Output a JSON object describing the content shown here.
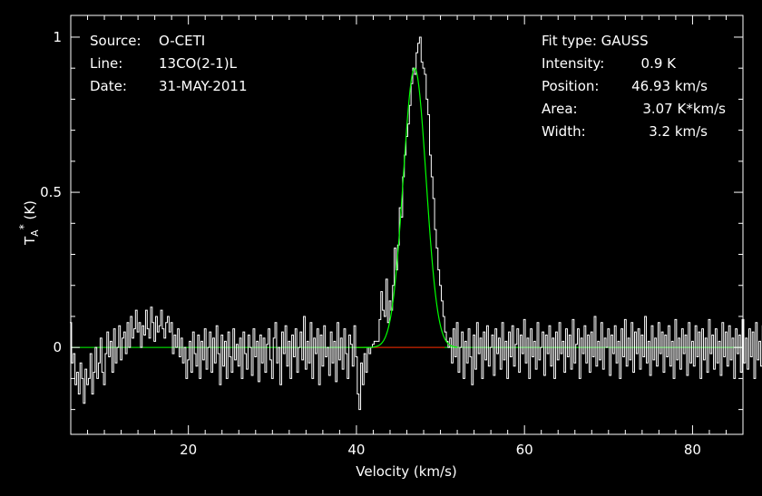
{
  "info_left": {
    "source_label": "Source:",
    "source_value": "O-CETI",
    "line_label": "Line:",
    "line_value": "13CO(2-1)L",
    "date_label": "Date:",
    "date_value": "31-MAY-2011"
  },
  "info_right": {
    "fit_type": "Fit type: GAUSS",
    "intensity_label": "Intensity:",
    "intensity_value": "0.9 K",
    "position_label": "Position:",
    "position_value": "46.93 km/s",
    "area_label": "Area:",
    "area_value": "3.07 K*km/s",
    "width_label": "Width:",
    "width_value": "3.2 km/s"
  },
  "chart_data": {
    "type": "line",
    "xlabel": "Velocity (km/s)",
    "ylabel": "T_A* (K)",
    "xlim": [
      6,
      86
    ],
    "ylim": [
      -0.28,
      1.07
    ],
    "xticks": [
      20,
      40,
      60,
      80
    ],
    "yticks": [
      0,
      0.5,
      1
    ],
    "ytick_labels": [
      "0",
      "0.5",
      "1"
    ],
    "colors": {
      "spectrum": "#ffffff",
      "fit": "#00ff00",
      "baseline": "#ff0000",
      "zero": "#00ff00"
    },
    "spectrum": {
      "x_start": 6.0,
      "x_step": 0.2,
      "values": [
        0.08,
        -0.05,
        -0.02,
        -0.12,
        -0.08,
        -0.15,
        -0.05,
        -0.1,
        -0.18,
        -0.07,
        -0.12,
        -0.1,
        -0.02,
        -0.15,
        -0.08,
        0.0,
        -0.1,
        -0.05,
        0.03,
        -0.08,
        -0.12,
        -0.02,
        0.05,
        -0.03,
        0.02,
        -0.08,
        0.06,
        -0.05,
        0.0,
        0.07,
        -0.04,
        0.03,
        0.05,
        -0.02,
        0.08,
        0.0,
        0.1,
        0.03,
        0.06,
        0.12,
        0.05,
        0.08,
        0.0,
        0.07,
        0.04,
        0.12,
        0.06,
        0.03,
        0.13,
        0.08,
        0.02,
        0.1,
        0.05,
        0.07,
        0.12,
        0.06,
        0.03,
        0.08,
        0.1,
        0.05,
        0.08,
        -0.02,
        0.04,
        0.0,
        0.06,
        -0.03,
        0.03,
        -0.05,
        0.0,
        -0.1,
        -0.04,
        0.02,
        -0.08,
        0.05,
        -0.02,
        -0.06,
        0.04,
        -0.1,
        0.02,
        -0.04,
        0.06,
        -0.07,
        0.0,
        0.05,
        -0.08,
        0.03,
        -0.05,
        0.07,
        -0.02,
        -0.12,
        0.04,
        -0.06,
        0.02,
        -0.1,
        0.05,
        -0.03,
        -0.08,
        0.06,
        -0.04,
        0.01,
        -0.06,
        0.03,
        -0.1,
        0.05,
        -0.02,
        -0.07,
        0.04,
        0.0,
        -0.09,
        0.06,
        -0.03,
        0.02,
        -0.11,
        0.04,
        -0.05,
        0.03,
        -0.08,
        0.01,
        0.06,
        -0.04,
        -0.1,
        0.03,
        0.08,
        -0.05,
        0.0,
        -0.12,
        0.05,
        -0.02,
        0.07,
        -0.06,
        0.02,
        -0.1,
        0.04,
        -0.03,
        0.06,
        -0.08,
        0.0,
        0.05,
        -0.04,
        0.1,
        -0.07,
        0.02,
        -0.05,
        0.08,
        -0.1,
        0.03,
        -0.02,
        0.06,
        -0.12,
        0.04,
        -0.06,
        0.07,
        -0.03,
        0.0,
        -0.09,
        0.05,
        -0.05,
        0.02,
        -0.11,
        0.08,
        -0.04,
        0.03,
        -0.07,
        0.06,
        -0.02,
        -0.1,
        0.04,
        0.01,
        -0.06,
        0.07,
        -0.03,
        -0.15,
        -0.2,
        -0.05,
        -0.12,
        -0.02,
        -0.08,
        0.0,
        -0.02,
        0.0,
        0.01,
        0.02,
        0.02,
        0.02,
        0.09,
        0.18,
        0.12,
        0.1,
        0.22,
        0.08,
        0.15,
        0.12,
        0.2,
        0.32,
        0.25,
        0.33,
        0.45,
        0.42,
        0.55,
        0.62,
        0.68,
        0.72,
        0.78,
        0.85,
        0.9,
        0.88,
        0.95,
        0.98,
        1.0,
        0.92,
        0.9,
        0.88,
        0.8,
        0.75,
        0.62,
        0.55,
        0.48,
        0.38,
        0.32,
        0.25,
        0.2,
        0.15,
        0.1,
        0.05,
        0.02,
        0.0,
        0.03,
        -0.05,
        0.06,
        -0.03,
        0.08,
        -0.08,
        0.0,
        0.05,
        -0.1,
        0.02,
        -0.05,
        0.06,
        -0.03,
        -0.12,
        0.04,
        -0.07,
        0.08,
        -0.02,
        0.03,
        -0.1,
        0.05,
        -0.04,
        0.07,
        -0.06,
        0.0,
        0.04,
        -0.09,
        0.06,
        -0.02,
        0.03,
        -0.07,
        0.08,
        -0.04,
        0.02,
        -0.1,
        0.05,
        -0.03,
        0.07,
        -0.06,
        0.01,
        0.06,
        -0.08,
        0.04,
        -0.02,
        0.09,
        -0.05,
        0.03,
        -0.1,
        0.06,
        -0.03,
        0.02,
        -0.07,
        0.08,
        -0.04,
        0.0,
        0.05,
        -0.09,
        0.04,
        -0.02,
        0.07,
        -0.06,
        0.03,
        -0.1,
        0.05,
        -0.04,
        0.08,
        -0.02,
        0.02,
        -0.08,
        0.06,
        -0.03,
        0.04,
        -0.07,
        0.09,
        -0.05,
        0.01,
        0.06,
        -0.1,
        0.03,
        -0.02,
        0.07,
        -0.05,
        0.04,
        -0.08,
        0.05,
        -0.03,
        0.1,
        -0.06,
        0.02,
        -0.04,
        0.08,
        -0.07,
        0.03,
        0.0,
        0.06,
        -0.09,
        0.04,
        -0.02,
        0.07,
        -0.05,
        0.02,
        -0.1,
        0.06,
        -0.03,
        0.09,
        -0.06,
        0.03,
        -0.04,
        0.08,
        -0.08,
        0.05,
        -0.02,
        0.06,
        -0.07,
        0.04,
        -0.03,
        0.1,
        -0.05,
        0.02,
        -0.09,
        0.07,
        -0.04,
        0.03,
        -0.06,
        0.08,
        -0.02,
        0.05,
        -0.08,
        0.04,
        -0.03,
        0.07,
        -0.06,
        0.02,
        -0.1,
        0.09,
        -0.04,
        0.03,
        -0.07,
        0.06,
        -0.02,
        0.04,
        -0.09,
        0.08,
        -0.05,
        0.02,
        -0.06,
        0.07,
        -0.03,
        0.05,
        -0.1,
        0.06,
        -0.04,
        0.03,
        -0.08,
        0.09,
        -0.02,
        0.04,
        -0.07,
        0.06,
        -0.05,
        0.02,
        -0.09,
        0.08,
        -0.03,
        0.05,
        -0.06,
        0.07,
        -0.04,
        0.03,
        -0.1,
        0.06,
        -0.02,
        0.04,
        -0.08,
        0.09,
        -0.05,
        0.03,
        -0.07,
        0.06,
        -0.03,
        0.05,
        -0.1,
        0.08,
        -0.04,
        0.02,
        -0.06,
        0.07,
        -0.02,
        -0.13,
        0.1,
        -0.12,
        0.02,
        0.05,
        -0.08,
        0.06,
        -0.12,
        -0.05
      ]
    },
    "fit": {
      "model": "gaussian",
      "amplitude_K": 0.9,
      "center_kms": 46.93,
      "fwhm_kms": 3.2,
      "window_kms": [
        40,
        52
      ]
    }
  }
}
